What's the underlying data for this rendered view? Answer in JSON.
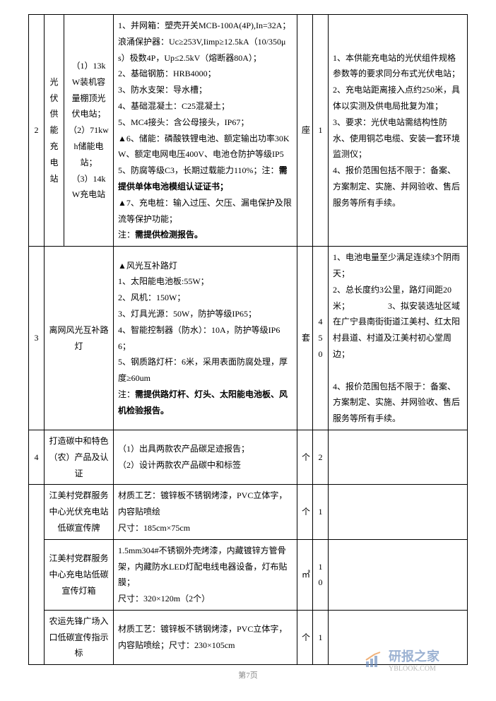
{
  "rows": [
    {
      "idx": "2",
      "name": "光伏供能充电站",
      "spec": "（1）13kW装机容量棚顶光伏电站；\n（2）71kwh储能电站；\n（3）14kW充电站",
      "detail": "1、并网箱：塑壳开关MCB-100A(4P),In=32A；浪涌保护器：Uc≥253V,Iimp≥12.5kA（10/350μs）极数4P，Up≤2.5kV（熔断器80A）；\n2、基础钢筋：HRB4000；\n3、防水支架：导水槽；\n4、基础混凝土：C25混凝土；\n5、MC4接头：含公母接头，IP67；\n▲6、储能：磷酸铁锂电池、额定输出功率30KW、额定电网电压400V、电池仓防护等级IP55、防腐等级C3，长期过载能力110%；注：<b>需提供单体电池模组认证证书；</b>\n▲7、充电桩：输入过压、欠压、漏电保护及限流等保护功能；\n注：<b>需提供检测报告。</b>",
      "unit": "座",
      "qty": "1",
      "note": "1、本供能充电站的光伏组件规格参数等的要求同分布式光伏电站；\n2、充电站距离接入点约250米，具体以实测及供电局批复为准；\n3、要求：光伏电站需结构性防水、使用铜芯电缆、安装一套环境监测仪；\n4、报价范围包括不限于：备案、方案制定、实施、并网验收、售后服务等所有手续。"
    },
    {
      "idx": "3",
      "name": "",
      "spec": "离网风光互补路灯",
      "specColspan": 2,
      "detail": "▲风光互补路灯\n1、太阳能电池板:55W；\n2、风机：150W；\n3、灯具光源：50W，防护等级IP65；\n4、智能控制器（防水）：10A，防护等级IP66；\n5、钢质路灯杆：6米，采用表面防腐处理，厚度≥60um\n注：<b>需提供路灯杆、灯头、太阳能电池板、风机检验报告。</b>",
      "unit": "套",
      "qty": "450",
      "note": "1、电池电量至少满足连续3个阴雨天；\n2、总长度约3公里，路灯间距20米；　　　　　3、拟安装选址区域在广宁县南街街道江美村、红太阳村县道、村道及江美村初心堂周边；\n\n4、报价范围包括不限于：备案、方案制定、实施、并网验收、售后服务等所有手续。"
    },
    {
      "idx": "4",
      "name": "",
      "spec": "打造碳中和特色（农）产品及认证",
      "specColspan": 2,
      "detail": "（1）出具两款农产品碳足迹报告；\n（2）设计两款农产品碳中和标签",
      "unit": "个",
      "qty": "2",
      "note": ""
    },
    {
      "idx": "",
      "idxRowspan": 3,
      "name": "",
      "spec": "江美村党群服务中心光伏充电站低碳宣传牌",
      "specColspan": 2,
      "detail": "材质工艺：镀锌板不锈钢烤漆，PVC立体字，内容贴喷绘\n尺寸：185cm×75cm",
      "unit": "个",
      "qty": "1",
      "note": ""
    },
    {
      "idx": "",
      "name": "",
      "spec": "江美村党群服务中心充电站低碳宣传灯箱",
      "specColspan": 2,
      "detail": "1.5mm304#不锈钢外壳烤漆，内藏镀锌方管骨架，内藏防水LED灯配电线电器设备，灯布贴膜；\n尺寸：320×120m（2个）",
      "unit": "㎡",
      "qty": "10",
      "note": ""
    },
    {
      "idx": "",
      "name": "",
      "spec": "农运先锋广场入口低碳宣传指示标",
      "specColspan": 2,
      "detail": "材质工艺：镀锌板不锈钢烤漆，PVC立体字，内容贴喷绘；尺寸：230×105cm",
      "unit": "个",
      "qty": "1",
      "note": ""
    }
  ],
  "footer": "第7页",
  "watermark": {
    "brand": "研报之家",
    "url": "YBLOOK.COM"
  }
}
